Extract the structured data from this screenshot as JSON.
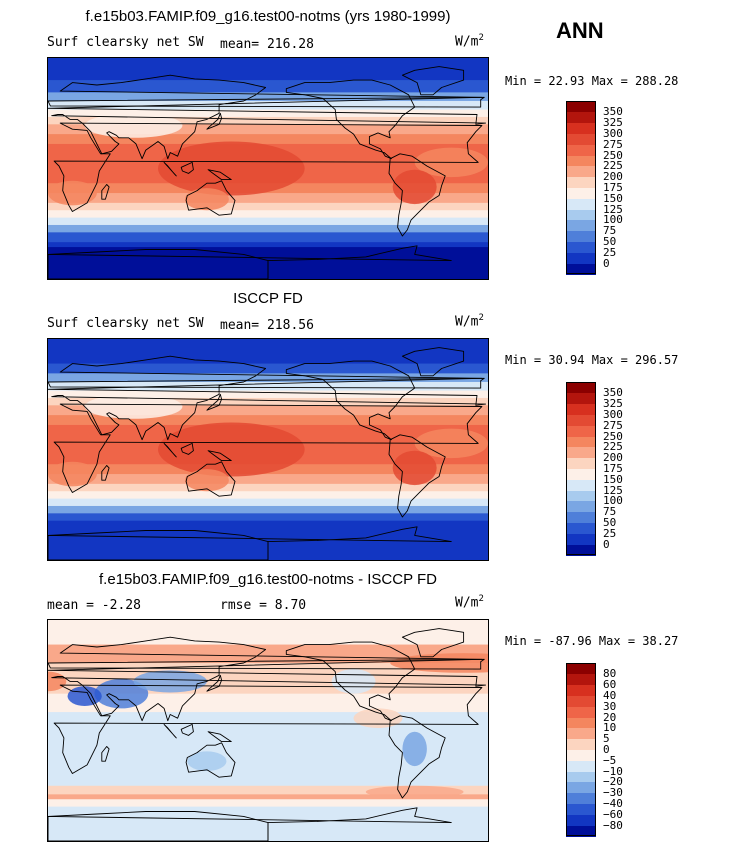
{
  "header": {
    "season": "ANN"
  },
  "panels": [
    {
      "title": "f.e15b03.FAMIP.f09_g16.test00-notms (yrs 1980-1999)",
      "left_label": "Surf clearsky net SW",
      "mid_label": "mean= 216.28",
      "units": "W/m",
      "units_sup": "2",
      "minmax": "Min =  22.93 Max = 288.28",
      "colorbar": {
        "labels": [
          "350",
          "325",
          "300",
          "275",
          "250",
          "225",
          "200",
          "175",
          "150",
          "125",
          "100",
          "75",
          "50",
          "25",
          "0"
        ],
        "colors": [
          "#8b0000",
          "#b3150d",
          "#d7301f",
          "#e34a33",
          "#ef6548",
          "#f4865f",
          "#f9a88a",
          "#fcd5c0",
          "#fdf0e8",
          "#d7e8f7",
          "#a8cbee",
          "#7aa6e3",
          "#4f7fd9",
          "#2a57d0",
          "#1236c2",
          "#000f99"
        ]
      },
      "chart_data": {
        "type": "heatmap",
        "variable": "Surf clearsky net SW",
        "units": "W/m2",
        "mean": 216.28,
        "min": 22.93,
        "max": 288.28,
        "levels": [
          0,
          25,
          50,
          75,
          100,
          125,
          150,
          175,
          200,
          225,
          250,
          275,
          300,
          325,
          350
        ]
      }
    },
    {
      "title": "ISCCP FD",
      "left_label": "Surf clearsky net SW",
      "mid_label": "mean= 218.56",
      "units": "W/m",
      "units_sup": "2",
      "minmax": "Min =  30.94 Max = 296.57",
      "colorbar": {
        "labels": [
          "350",
          "325",
          "300",
          "275",
          "250",
          "225",
          "200",
          "175",
          "150",
          "125",
          "100",
          "75",
          "50",
          "25",
          "0"
        ],
        "colors": [
          "#8b0000",
          "#b3150d",
          "#d7301f",
          "#e34a33",
          "#ef6548",
          "#f4865f",
          "#f9a88a",
          "#fcd5c0",
          "#fdf0e8",
          "#d7e8f7",
          "#a8cbee",
          "#7aa6e3",
          "#4f7fd9",
          "#2a57d0",
          "#1236c2",
          "#000f99"
        ]
      },
      "chart_data": {
        "type": "heatmap",
        "variable": "Surf clearsky net SW",
        "units": "W/m2",
        "mean": 218.56,
        "min": 30.94,
        "max": 296.57,
        "levels": [
          0,
          25,
          50,
          75,
          100,
          125,
          150,
          175,
          200,
          225,
          250,
          275,
          300,
          325,
          350
        ]
      }
    },
    {
      "title": "f.e15b03.FAMIP.f09_g16.test00-notms - ISCCP FD",
      "left_label": "mean =  -2.28",
      "mid_label": "rmse =   8.70",
      "units": "W/m",
      "units_sup": "2",
      "minmax": "Min = -87.96 Max =  38.27",
      "colorbar": {
        "labels": [
          "80",
          "60",
          "40",
          "30",
          "20",
          "10",
          "5",
          "0",
          "−5",
          "−10",
          "−20",
          "−30",
          "−40",
          "−60",
          "−80"
        ],
        "colors": [
          "#8b0000",
          "#b3150d",
          "#d7301f",
          "#e34a33",
          "#ef6548",
          "#f4865f",
          "#f9a88a",
          "#fcd5c0",
          "#fdf0e8",
          "#d7e8f7",
          "#a8cbee",
          "#7aa6e3",
          "#4f7fd9",
          "#2a57d0",
          "#1236c2",
          "#000f99"
        ]
      },
      "chart_data": {
        "type": "heatmap",
        "variable": "difference",
        "units": "W/m2",
        "mean": -2.28,
        "rmse": 8.7,
        "min": -87.96,
        "max": 38.27,
        "levels": [
          -80,
          -60,
          -40,
          -30,
          -20,
          -10,
          -5,
          0,
          5,
          10,
          20,
          30,
          40,
          60,
          80
        ]
      }
    }
  ]
}
